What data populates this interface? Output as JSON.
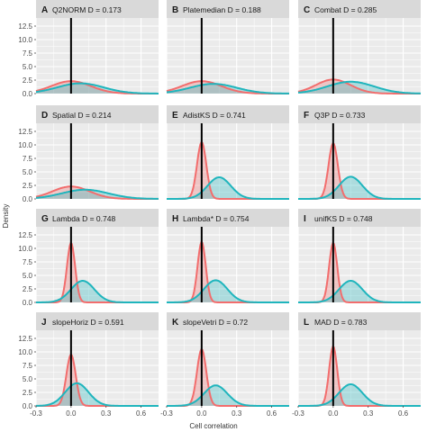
{
  "chart_data": {
    "type": "area",
    "xlabel": "Cell correlation",
    "ylabel": "Density",
    "xlim": [
      -0.3,
      0.75
    ],
    "ylim": [
      0,
      14
    ],
    "x_ticks": [
      "-0.3",
      "0.0",
      "0.3",
      "0.6"
    ],
    "y_ticks": [
      "0.0",
      "2.5",
      "5.0",
      "7.5",
      "10.0",
      "12.5"
    ],
    "series_colors": {
      "red": "#f26d6d",
      "teal": "#1fb5bd"
    },
    "vline_x": 0,
    "panels": [
      {
        "letter": "A",
        "title": "Q2NORM D = 0.173",
        "red": {
          "mu": 0.0,
          "sigma": 0.17,
          "peak": 2.3
        },
        "teal": {
          "mu": 0.08,
          "sigma": 0.2,
          "peak": 1.9
        }
      },
      {
        "letter": "B",
        "title": "Platemedian D = 0.188",
        "red": {
          "mu": 0.0,
          "sigma": 0.17,
          "peak": 2.3
        },
        "teal": {
          "mu": 0.1,
          "sigma": 0.2,
          "peak": 1.8
        }
      },
      {
        "letter": "C",
        "title": "Combat D = 0.285",
        "red": {
          "mu": 0.0,
          "sigma": 0.15,
          "peak": 2.6
        },
        "teal": {
          "mu": 0.15,
          "sigma": 0.2,
          "peak": 2.2
        }
      },
      {
        "letter": "D",
        "title": "Spatial D = 0.214",
        "red": {
          "mu": 0.0,
          "sigma": 0.16,
          "peak": 2.3
        },
        "teal": {
          "mu": 0.12,
          "sigma": 0.2,
          "peak": 1.7
        }
      },
      {
        "letter": "E",
        "title": "AdistKS D = 0.741",
        "red": {
          "mu": 0.0,
          "sigma": 0.04,
          "peak": 10.5
        },
        "teal": {
          "mu": 0.15,
          "sigma": 0.1,
          "peak": 4.0
        }
      },
      {
        "letter": "F",
        "title": "Q3P D = 0.733",
        "red": {
          "mu": 0.0,
          "sigma": 0.04,
          "peak": 10.3
        },
        "teal": {
          "mu": 0.15,
          "sigma": 0.1,
          "peak": 4.1
        }
      },
      {
        "letter": "G",
        "title": "Lambda D = 0.748",
        "red": {
          "mu": 0.0,
          "sigma": 0.035,
          "peak": 11.0
        },
        "teal": {
          "mu": 0.1,
          "sigma": 0.1,
          "peak": 4.0
        }
      },
      {
        "letter": "H",
        "title": "Lambda* D = 0.754",
        "red": {
          "mu": 0.0,
          "sigma": 0.035,
          "peak": 11.2
        },
        "teal": {
          "mu": 0.12,
          "sigma": 0.1,
          "peak": 4.1
        }
      },
      {
        "letter": "I",
        "title": "unifKS D = 0.748",
        "red": {
          "mu": 0.0,
          "sigma": 0.035,
          "peak": 11.0
        },
        "teal": {
          "mu": 0.15,
          "sigma": 0.1,
          "peak": 4.0
        }
      },
      {
        "letter": "J",
        "title": "slopeHoriz D = 0.591",
        "red": {
          "mu": 0.0,
          "sigma": 0.04,
          "peak": 9.5
        },
        "teal": {
          "mu": 0.05,
          "sigma": 0.1,
          "peak": 4.2
        }
      },
      {
        "letter": "K",
        "title": "slopeVetri D = 0.72",
        "red": {
          "mu": 0.0,
          "sigma": 0.04,
          "peak": 10.5
        },
        "teal": {
          "mu": 0.12,
          "sigma": 0.1,
          "peak": 3.8
        }
      },
      {
        "letter": "L",
        "title": "MAD D = 0.783",
        "red": {
          "mu": 0.0,
          "sigma": 0.035,
          "peak": 11.0
        },
        "teal": {
          "mu": 0.15,
          "sigma": 0.1,
          "peak": 4.0
        }
      }
    ]
  }
}
